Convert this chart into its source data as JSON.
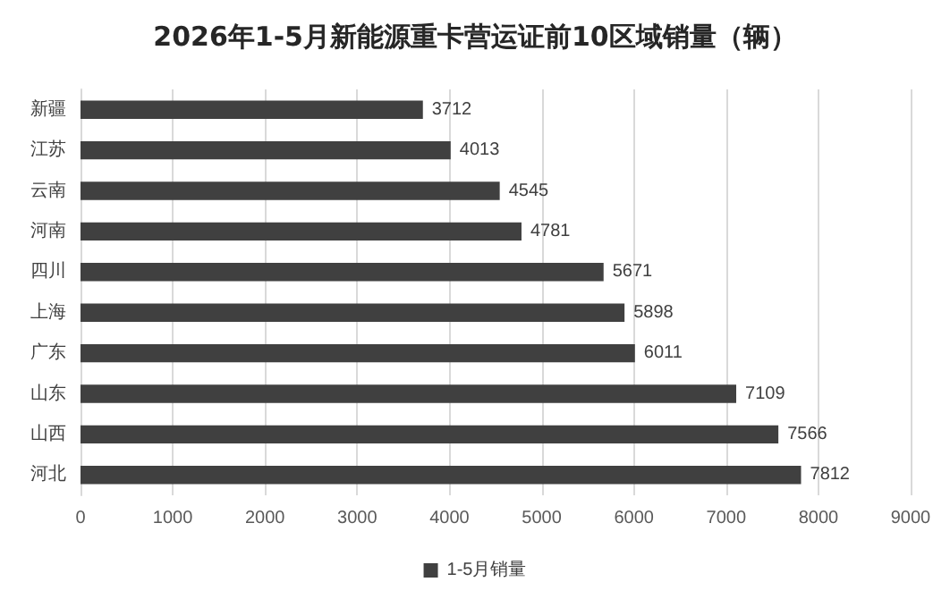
{
  "chart_data": {
    "type": "bar",
    "orientation": "horizontal",
    "title": "2026年1-5月新能源重卡营运证前10区域销量（辆）",
    "categories": [
      "新疆",
      "江苏",
      "云南",
      "河南",
      "四川",
      "上海",
      "广东",
      "山东",
      "山西",
      "河北"
    ],
    "series": [
      {
        "name": "1-5月销量",
        "color": "#404040",
        "values": [
          3712,
          4013,
          4545,
          4781,
          5671,
          5898,
          6011,
          7109,
          7566,
          7812
        ]
      }
    ],
    "xlim": [
      0,
      9000
    ],
    "xticks": [
      0,
      1000,
      2000,
      3000,
      4000,
      5000,
      6000,
      7000,
      8000,
      9000
    ],
    "grid": "x",
    "legend": "bottom",
    "data_labels": true
  }
}
